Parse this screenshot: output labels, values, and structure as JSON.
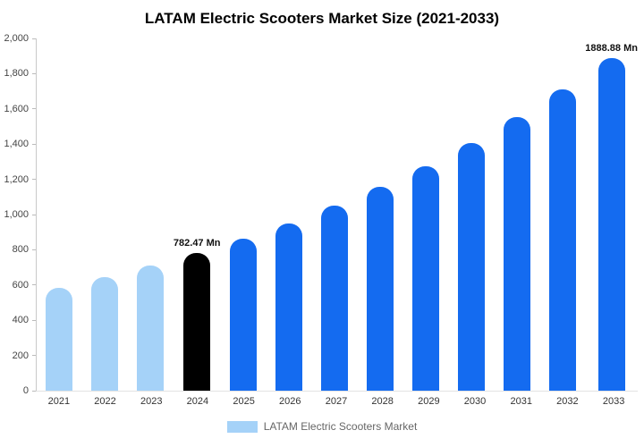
{
  "title": "LATAM Electric Scooters Market Size (2021-2033)",
  "legend": {
    "label": "LATAM Electric Scooters Market"
  },
  "colors": {
    "light": "#a5d2f8",
    "highlight": "#000000",
    "primary": "#146bf0",
    "axis_line": "#c9c9c9",
    "tick_text": "#444444"
  },
  "chart_data": {
    "type": "bar",
    "title": "LATAM Electric Scooters Market Size (2021-2033)",
    "categories": [
      "2021",
      "2022",
      "2023",
      "2024",
      "2025",
      "2026",
      "2027",
      "2028",
      "2029",
      "2030",
      "2031",
      "2032",
      "2033"
    ],
    "values": [
      583,
      643,
      709,
      782.47,
      863,
      951,
      1049,
      1157,
      1275,
      1406,
      1551,
      1710,
      1888.88
    ],
    "bar_styles": [
      "light",
      "light",
      "light",
      "highlight",
      "primary",
      "primary",
      "primary",
      "primary",
      "primary",
      "primary",
      "primary",
      "primary",
      "primary"
    ],
    "annotations": [
      {
        "category": "2024",
        "text": "782.47 Mn"
      },
      {
        "category": "2033",
        "text": "1888.88 Mn"
      }
    ],
    "xlabel": "",
    "ylabel": "",
    "ylim": [
      0,
      2000
    ],
    "ytick_labels": [
      "2,000",
      "1,800",
      "1,600",
      "1,400",
      "1,200",
      "1,000",
      "800",
      "600",
      "400",
      "200",
      "0"
    ],
    "grid": false,
    "legend_position": "bottom",
    "legend_entries": [
      "LATAM Electric Scooters Market"
    ],
    "unit": "Mn"
  }
}
